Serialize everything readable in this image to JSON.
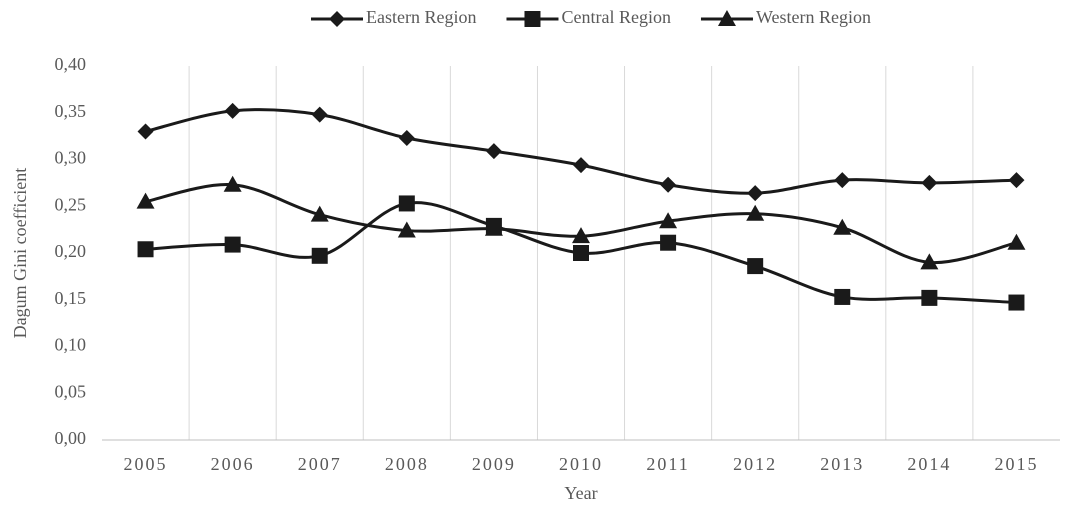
{
  "chart_data": {
    "type": "line",
    "smooth": true,
    "x_label": "Year",
    "y_label": "Dagum Gini coefficient",
    "categories": [
      "2005",
      "2006",
      "2007",
      "2008",
      "2009",
      "2010",
      "2011",
      "2012",
      "2013",
      "2014",
      "2015"
    ],
    "series": [
      {
        "name": "Eastern Region",
        "color": "#1a1a1a",
        "marker": "diamond",
        "values": [
          0.33,
          0.352,
          0.348,
          0.323,
          0.309,
          0.294,
          0.273,
          0.264,
          0.278,
          0.275,
          0.278
        ]
      },
      {
        "name": "Central Region",
        "color": "#1a1a1a",
        "marker": "square",
        "values": [
          0.204,
          0.209,
          0.197,
          0.253,
          0.229,
          0.2,
          0.211,
          0.186,
          0.153,
          0.152,
          0.147
        ]
      },
      {
        "name": "Western Region",
        "color": "#1a1a1a",
        "marker": "triangle",
        "values": [
          0.255,
          0.273,
          0.241,
          0.224,
          0.226,
          0.218,
          0.234,
          0.242,
          0.227,
          0.19,
          0.211
        ]
      }
    ],
    "ylim": [
      0,
      0.4
    ],
    "yticks": [
      {
        "value": 0,
        "label": "0,00"
      },
      {
        "value": 0.05,
        "label": "0,05"
      },
      {
        "value": 0.1,
        "label": "0,10"
      },
      {
        "value": 0.15,
        "label": "0,15"
      },
      {
        "value": 0.2,
        "label": "0,20"
      },
      {
        "value": 0.25,
        "label": "0,25"
      },
      {
        "value": 0.3,
        "label": "0,30"
      },
      {
        "value": 0.35,
        "label": "0,35"
      },
      {
        "value": 0.4,
        "label": "0,40"
      }
    ],
    "legend": "top"
  }
}
